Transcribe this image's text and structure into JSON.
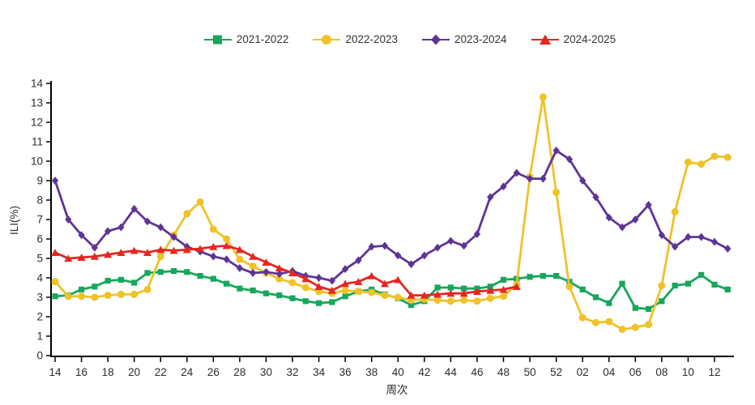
{
  "page": {
    "background": "#ffffff"
  },
  "axis": {
    "color": "#000000",
    "label_color": "#2b2b2b",
    "y_title": "ILI(%)",
    "x_title": "周次"
  },
  "chart_data": {
    "type": "line",
    "title": "",
    "xlabel": "周次",
    "ylabel": "ILI(%)",
    "ylim": [
      0,
      14
    ],
    "y_ticks": [
      0,
      1,
      2,
      3,
      4,
      5,
      6,
      7,
      8,
      9,
      10,
      11,
      12,
      13,
      14
    ],
    "grid": false,
    "legend_position": "top",
    "categories": [
      "14",
      "15",
      "16",
      "17",
      "18",
      "19",
      "20",
      "21",
      "22",
      "23",
      "24",
      "25",
      "26",
      "27",
      "28",
      "29",
      "30",
      "31",
      "32",
      "33",
      "34",
      "35",
      "36",
      "37",
      "38",
      "39",
      "40",
      "41",
      "42",
      "43",
      "44",
      "45",
      "46",
      "47",
      "48",
      "49",
      "50",
      "51",
      "52",
      "01",
      "02",
      "03",
      "04",
      "05",
      "06",
      "07",
      "08",
      "09",
      "10",
      "11",
      "12",
      "13"
    ],
    "x_tick_step": 2,
    "series": [
      {
        "name": "2021-2022",
        "color": "#16A75C",
        "marker": "square",
        "values": [
          3.05,
          3.1,
          3.4,
          3.55,
          3.85,
          3.9,
          3.75,
          4.25,
          4.3,
          4.35,
          4.3,
          4.1,
          3.95,
          3.7,
          3.45,
          3.35,
          3.2,
          3.1,
          2.95,
          2.8,
          2.7,
          2.75,
          3.05,
          3.3,
          3.4,
          3.15,
          2.95,
          2.6,
          2.8,
          3.5,
          3.5,
          3.45,
          3.45,
          3.55,
          3.9,
          3.95,
          4.05,
          4.1,
          4.1,
          3.8,
          3.4,
          3.0,
          2.7,
          3.7,
          2.45,
          2.4,
          2.8,
          3.6,
          3.7,
          4.15,
          3.65,
          3.4
        ]
      },
      {
        "name": "2022-2023",
        "color": "#EFC228",
        "marker": "circle",
        "values": [
          3.8,
          3.05,
          3.05,
          3.0,
          3.1,
          3.15,
          3.15,
          3.4,
          5.1,
          6.2,
          7.3,
          7.9,
          6.5,
          6.0,
          4.95,
          4.6,
          4.25,
          3.95,
          3.75,
          3.5,
          3.3,
          3.2,
          3.35,
          3.3,
          3.25,
          3.1,
          3.0,
          2.85,
          2.9,
          2.85,
          2.8,
          2.85,
          2.8,
          2.95,
          3.05,
          3.65,
          9.2,
          13.3,
          8.4,
          3.55,
          1.95,
          1.7,
          1.75,
          1.35,
          1.45,
          1.6,
          3.6,
          7.4,
          9.95,
          9.85,
          10.25,
          10.2
        ]
      },
      {
        "name": "2023-2024",
        "color": "#5E3494",
        "marker": "diamond",
        "values": [
          9.0,
          7.0,
          6.2,
          5.55,
          6.4,
          6.6,
          7.55,
          6.9,
          6.6,
          6.1,
          5.6,
          5.35,
          5.1,
          4.95,
          4.5,
          4.25,
          4.3,
          4.2,
          4.35,
          4.1,
          4.0,
          3.85,
          4.45,
          4.9,
          5.6,
          5.65,
          5.15,
          4.7,
          5.15,
          5.55,
          5.9,
          5.65,
          6.25,
          8.15,
          8.7,
          9.4,
          9.1,
          9.1,
          10.55,
          10.1,
          9.0,
          8.15,
          7.1,
          6.6,
          7.0,
          7.75,
          6.2,
          5.6,
          6.1,
          6.1,
          5.85,
          5.5
        ]
      },
      {
        "name": "2024-2025",
        "color": "#E62621",
        "marker": "triangle",
        "values": [
          5.3,
          5.0,
          5.05,
          5.1,
          5.2,
          5.3,
          5.4,
          5.3,
          5.45,
          5.4,
          5.45,
          5.5,
          5.6,
          5.65,
          5.45,
          5.1,
          4.8,
          4.5,
          4.25,
          3.95,
          3.55,
          3.35,
          3.7,
          3.8,
          4.1,
          3.7,
          3.9,
          3.1,
          3.1,
          3.15,
          3.2,
          3.2,
          3.3,
          3.35,
          3.4,
          3.55
        ]
      }
    ]
  }
}
